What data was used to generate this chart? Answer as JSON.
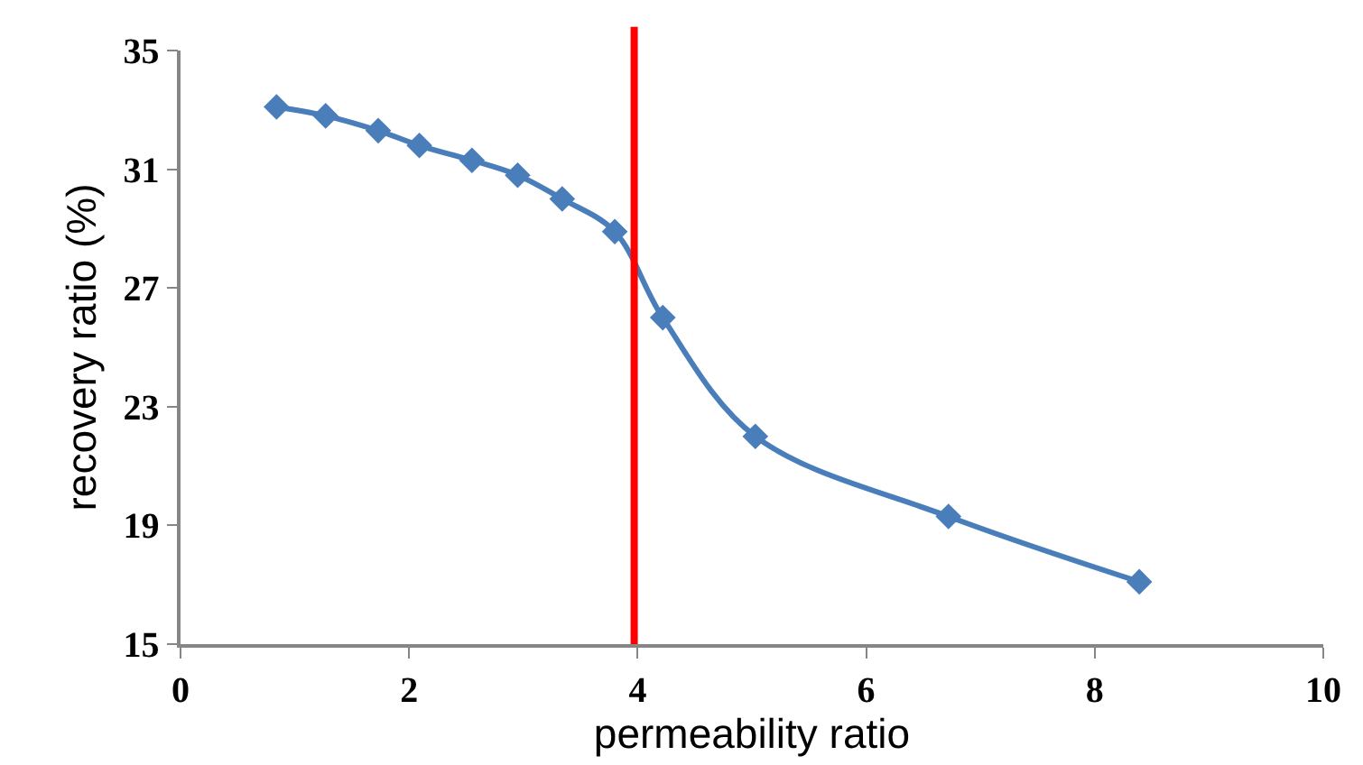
{
  "chart_data": {
    "type": "line",
    "xlabel": "permeability ratio",
    "ylabel": "recovery ratio (%)",
    "x": [
      0.84,
      1.27,
      1.73,
      2.09,
      2.55,
      2.95,
      3.34,
      3.8,
      4.22,
      5.03,
      6.72,
      8.39
    ],
    "series": [
      {
        "color": "#4a7ebb",
        "values": [
          33.1,
          32.8,
          32.3,
          31.8,
          31.3,
          30.8,
          30.0,
          28.9,
          26.0,
          22.0,
          19.3,
          17.1
        ]
      }
    ],
    "xlim": [
      0,
      10
    ],
    "xticks": [
      0,
      2,
      4,
      6,
      8,
      10
    ],
    "ylim": [
      15,
      35
    ],
    "yticks": [
      15,
      19,
      23,
      27,
      31,
      35
    ],
    "ref_lines": [
      {
        "axis": "x",
        "value": 3.97,
        "color": "#ff0000"
      }
    ],
    "legend": false,
    "marker": "diamond",
    "line_style": "solid"
  }
}
